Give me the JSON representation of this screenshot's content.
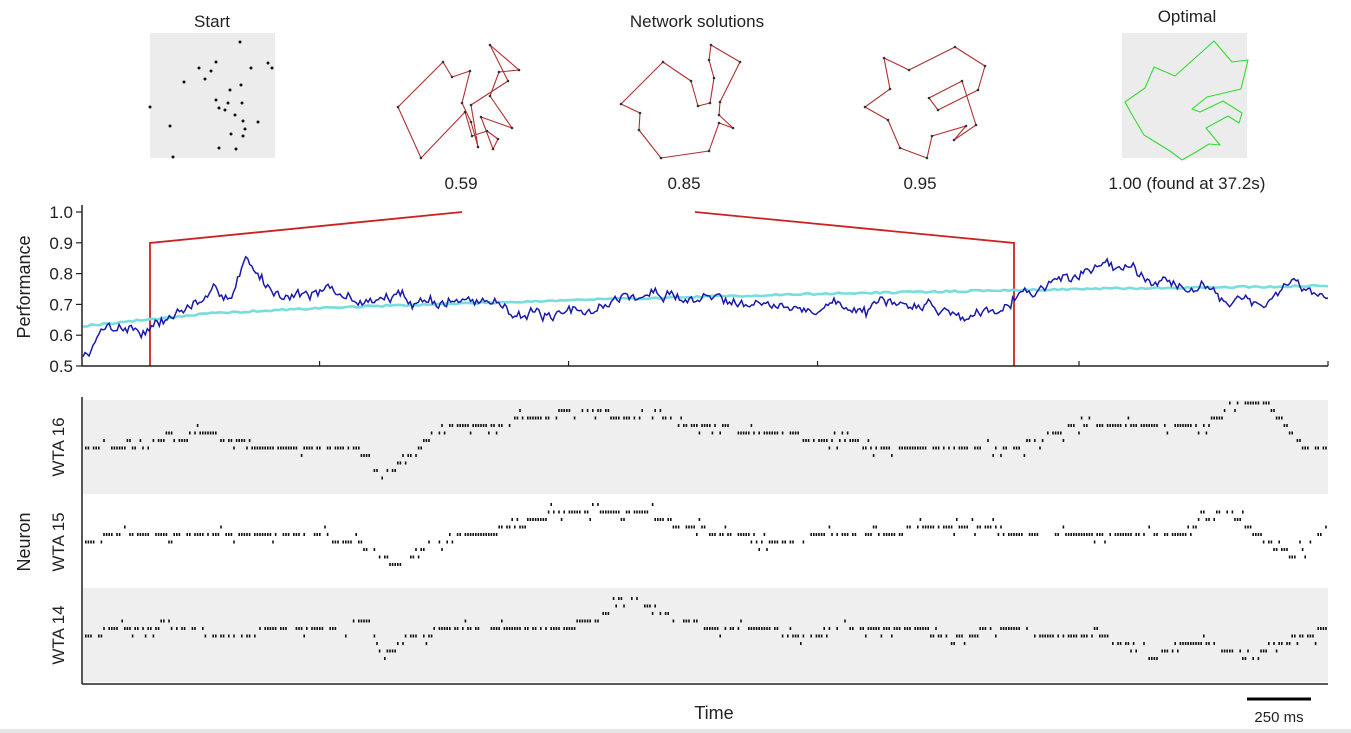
{
  "header": {
    "start_label": "Start",
    "network_label": "Network solutions",
    "optimal_label": "Optimal",
    "solution_scores": [
      "0.59",
      "0.85",
      "0.95"
    ],
    "optimal_score": "1.00 (found at 37.2s)"
  },
  "colors": {
    "network_route": "#b23030",
    "optimal_route": "#33dd33",
    "performance_line": "#1a1aaa",
    "mean_line": "#77dddd",
    "zoom_lines": "#cc2222",
    "panel_background": "#efefef"
  },
  "chart_data": [
    {
      "type": "line",
      "ylabel": "Performance",
      "xlabel": "",
      "yticks": [
        "0.5",
        "0.6",
        "0.7",
        "0.8",
        "0.9",
        "1.0"
      ],
      "ylim": [
        0.5,
        1.0
      ],
      "grid": false,
      "series": [
        {
          "role": "network performance",
          "color": "blue",
          "keypoints_t": [
            0,
            0.02,
            0.05,
            0.07,
            0.09,
            0.12,
            0.13,
            0.15,
            0.19,
            0.22,
            0.26,
            0.3,
            0.34,
            0.38,
            0.43,
            0.46,
            0.5,
            0.54,
            0.57,
            0.6,
            0.64,
            0.68,
            0.71,
            0.75,
            0.78,
            0.8,
            0.83,
            0.86,
            0.9,
            0.93,
            0.95,
            0.97,
            1.0
          ],
          "keypoints_y": [
            0.53,
            0.64,
            0.62,
            0.66,
            0.7,
            0.74,
            0.84,
            0.75,
            0.74,
            0.71,
            0.72,
            0.71,
            0.7,
            0.64,
            0.72,
            0.73,
            0.72,
            0.73,
            0.67,
            0.7,
            0.68,
            0.7,
            0.66,
            0.74,
            0.77,
            0.8,
            0.84,
            0.79,
            0.75,
            0.72,
            0.69,
            0.76,
            0.74
          ]
        },
        {
          "role": "running mean",
          "color": "cyan",
          "keypoints_t": [
            0,
            0.1,
            0.2,
            0.4,
            0.6,
            0.8,
            1.0
          ],
          "keypoints_y": [
            0.63,
            0.67,
            0.69,
            0.715,
            0.735,
            0.75,
            0.76
          ]
        }
      ]
    },
    {
      "type": "scatter",
      "title": "",
      "ylabel": "Neuron",
      "xlabel": "Time",
      "scale_bar": "250 ms",
      "groups": [
        {
          "name": "WTA 16",
          "keypoints_t": [
            0,
            0.04,
            0.07,
            0.1,
            0.12,
            0.14,
            0.17,
            0.22,
            0.24,
            0.27,
            0.28,
            0.3,
            0.33,
            0.36,
            0.4,
            0.45,
            0.5,
            0.55,
            0.6,
            0.65,
            0.7,
            0.75,
            0.78,
            0.8,
            0.85,
            0.9,
            0.93,
            0.95,
            0.98,
            1.0
          ],
          "keypoints_level": [
            5,
            5,
            6,
            7,
            6,
            5,
            5,
            5,
            1,
            5,
            7,
            8,
            8,
            9,
            10,
            9,
            8,
            7,
            6,
            5,
            5,
            5,
            7,
            8,
            8,
            8,
            11,
            11,
            5,
            5
          ]
        },
        {
          "name": "WTA 15",
          "keypoints_t": [
            0,
            0.03,
            0.06,
            0.1,
            0.14,
            0.18,
            0.22,
            0.25,
            0.28,
            0.32,
            0.35,
            0.38,
            0.42,
            0.45,
            0.48,
            0.52,
            0.56,
            0.6,
            0.64,
            0.68,
            0.72,
            0.76,
            0.8,
            0.84,
            0.88,
            0.9,
            0.92,
            0.95,
            0.97,
            1.0
          ],
          "keypoints_level": [
            5,
            6,
            6,
            6,
            6,
            6,
            5,
            2,
            5,
            6,
            7,
            9,
            9,
            9,
            7,
            6,
            5,
            6,
            6,
            7,
            7,
            6,
            6,
            6,
            6,
            8,
            9,
            5,
            3,
            7
          ]
        },
        {
          "name": "WTA 14",
          "keypoints_t": [
            0,
            0.04,
            0.08,
            0.12,
            0.16,
            0.2,
            0.23,
            0.24,
            0.26,
            0.3,
            0.34,
            0.38,
            0.41,
            0.44,
            0.47,
            0.5,
            0.54,
            0.58,
            0.62,
            0.66,
            0.7,
            0.74,
            0.78,
            0.81,
            0.84,
            0.86,
            0.88,
            0.9,
            0.92,
            0.94,
            0.96,
            0.98,
            1.0
          ],
          "keypoints_level": [
            5,
            6,
            6,
            5,
            6,
            6,
            7,
            2,
            5,
            6,
            6,
            6,
            7,
            10,
            8,
            6,
            6,
            5,
            6,
            6,
            5,
            6,
            5,
            5,
            4,
            2,
            4,
            4,
            3,
            2,
            4,
            5,
            6
          ]
        }
      ]
    }
  ]
}
